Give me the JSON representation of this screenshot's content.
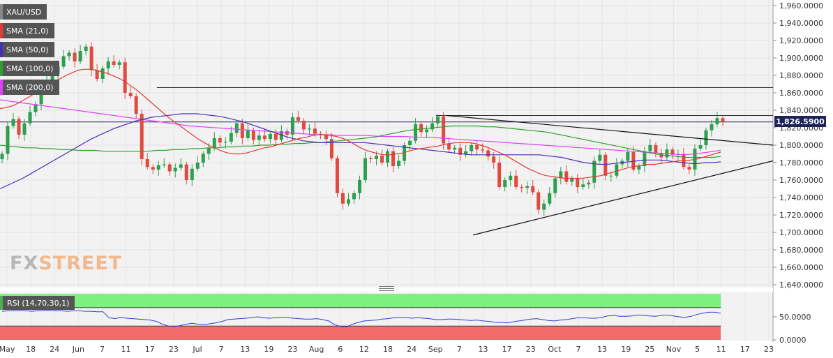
{
  "chart_data": {
    "type": "candlestick",
    "symbol": "XAU/USD",
    "last_price": "1,826.5900",
    "indicators": [
      {
        "label": "XAU/USD",
        "color": "#888888"
      },
      {
        "label": "SMA (21,0)",
        "color": "#e53935"
      },
      {
        "label": "SMA (50,0)",
        "color": "#4a2fb5"
      },
      {
        "label": "SMA (100,0)",
        "color": "#2ca02c"
      },
      {
        "label": "SMA (200,0)",
        "color": "#e040fb"
      }
    ],
    "price_axis": {
      "ylim": [
        1640,
        1960
      ],
      "ticks": [
        "1,960.0000",
        "1,940.0000",
        "1,920.0000",
        "1,900.0000",
        "1,880.0000",
        "1,860.0000",
        "1,840.0000",
        "1,820.0000",
        "1,800.0000",
        "1,780.0000",
        "1,760.0000",
        "1,740.0000",
        "1,720.0000",
        "1,700.0000",
        "1,680.0000",
        "1,660.0000",
        "1,640.0000"
      ],
      "tick_values": [
        1960,
        1940,
        1920,
        1900,
        1880,
        1860,
        1840,
        1820,
        1800,
        1780,
        1760,
        1740,
        1720,
        1700,
        1680,
        1660,
        1640
      ]
    },
    "time_axis": {
      "labels": [
        "May",
        "18",
        "24",
        "Jun",
        "7",
        "11",
        "17",
        "23",
        "Jul",
        "7",
        "13",
        "19",
        "23",
        "Aug",
        "6",
        "12",
        "18",
        "24",
        "Sep",
        "7",
        "13",
        "17",
        "23",
        "Oct",
        "7",
        "13",
        "19",
        "25",
        "Nov",
        "5",
        "11",
        "17",
        "23"
      ]
    },
    "closes": [
      1790,
      1822,
      1830,
      1812,
      1825,
      1838,
      1847,
      1866,
      1874,
      1882,
      1890,
      1902,
      1906,
      1896,
      1908,
      1913,
      1886,
      1876,
      1888,
      1896,
      1892,
      1895,
      1860,
      1856,
      1836,
      1784,
      1775,
      1772,
      1777,
      1778,
      1770,
      1774,
      1778,
      1760,
      1773,
      1780,
      1790,
      1797,
      1808,
      1803,
      1804,
      1814,
      1825,
      1808,
      1817,
      1806,
      1811,
      1807,
      1813,
      1806,
      1816,
      1812,
      1832,
      1828,
      1818,
      1819,
      1813,
      1812,
      1807,
      1785,
      1745,
      1733,
      1738,
      1745,
      1760,
      1785,
      1784,
      1788,
      1780,
      1793,
      1776,
      1782,
      1800,
      1805,
      1824,
      1815,
      1818,
      1825,
      1833,
      1802,
      1795,
      1797,
      1789,
      1793,
      1800,
      1795,
      1794,
      1787,
      1780,
      1752,
      1760,
      1765,
      1752,
      1751,
      1753,
      1746,
      1726,
      1733,
      1745,
      1762,
      1770,
      1758,
      1762,
      1752,
      1755,
      1757,
      1782,
      1789,
      1765,
      1765,
      1778,
      1782,
      1792,
      1772,
      1776,
      1793,
      1800,
      1791,
      1786,
      1795,
      1789,
      1790,
      1775,
      1772,
      1796,
      1800,
      1817,
      1824,
      1831,
      1826.59
    ],
    "sma21": [
      1842,
      1843,
      1845,
      1848,
      1852,
      1856,
      1860,
      1864,
      1868,
      1872,
      1876,
      1880,
      1883,
      1886,
      1887,
      1887,
      1886,
      1884,
      1882,
      1879,
      1876,
      1872,
      1867,
      1862,
      1856,
      1850,
      1844,
      1838,
      1832,
      1827,
      1822,
      1817,
      1812,
      1807,
      1803,
      1799,
      1796,
      1793,
      1791,
      1790,
      1790,
      1791,
      1793,
      1795,
      1797,
      1798,
      1800,
      1802,
      1804,
      1806,
      1808,
      1809,
      1811,
      1812,
      1812,
      1811,
      1810,
      1808,
      1805,
      1801,
      1797,
      1794,
      1792,
      1790,
      1789,
      1789,
      1790,
      1791,
      1793,
      1795,
      1796,
      1797,
      1798,
      1799,
      1801,
      1802,
      1803,
      1803,
      1803,
      1802,
      1800,
      1798,
      1795,
      1792,
      1789,
      1785,
      1781,
      1777,
      1773,
      1770,
      1767,
      1765,
      1764,
      1763,
      1762,
      1762,
      1762,
      1762,
      1763,
      1764,
      1765,
      1767,
      1769,
      1771,
      1773,
      1775,
      1776,
      1777,
      1778,
      1778,
      1779,
      1780,
      1781,
      1782,
      1782,
      1783,
      1784,
      1786,
      1788,
      1790,
      1792
    ],
    "sma50": [
      1750,
      1754,
      1758,
      1762,
      1767,
      1772,
      1777,
      1782,
      1787,
      1792,
      1797,
      1802,
      1807,
      1811,
      1815,
      1819,
      1822,
      1825,
      1828,
      1830,
      1832,
      1833,
      1834,
      1835,
      1836,
      1836,
      1836,
      1835,
      1834,
      1833,
      1831,
      1829,
      1827,
      1824,
      1821,
      1818,
      1815,
      1812,
      1809,
      1807,
      1805,
      1804,
      1803,
      1803,
      1803,
      1803,
      1803,
      1803,
      1803,
      1802,
      1801,
      1800,
      1799,
      1798,
      1797,
      1796,
      1795,
      1794,
      1793,
      1792,
      1791,
      1790,
      1789,
      1789,
      1789,
      1789,
      1789,
      1789,
      1789,
      1789,
      1789,
      1789,
      1788,
      1787,
      1786,
      1784,
      1782,
      1780,
      1779,
      1778,
      1778,
      1779,
      1780,
      1781,
      1782,
      1783,
      1783,
      1783,
      1782,
      1781,
      1780,
      1779,
      1779,
      1780,
      1780,
      1781
    ],
    "sma100": [
      1800,
      1799,
      1798,
      1797,
      1797,
      1796,
      1796,
      1795,
      1795,
      1794,
      1794,
      1794,
      1793,
      1793,
      1793,
      1793,
      1793,
      1793,
      1794,
      1794,
      1795,
      1795,
      1796,
      1796,
      1797,
      1797,
      1798,
      1798,
      1799,
      1799,
      1800,
      1800,
      1801,
      1801,
      1802,
      1802,
      1803,
      1803,
      1804,
      1805,
      1806,
      1807,
      1808,
      1809,
      1811,
      1813,
      1815,
      1817,
      1818,
      1819,
      1820,
      1821,
      1822,
      1822,
      1822,
      1822,
      1821,
      1821,
      1820,
      1819,
      1818,
      1817,
      1816,
      1815,
      1813,
      1811,
      1809,
      1807,
      1805,
      1803,
      1801,
      1799,
      1797,
      1795,
      1793,
      1791,
      1789,
      1788,
      1787,
      1786,
      1786,
      1786,
      1786,
      1787
    ],
    "sma200": [
      1852,
      1850,
      1848,
      1846,
      1844,
      1842,
      1840,
      1838,
      1836,
      1834,
      1832,
      1830,
      1828,
      1826,
      1824,
      1822,
      1821,
      1820,
      1819,
      1818,
      1817,
      1816,
      1815,
      1814,
      1813,
      1812,
      1812,
      1811,
      1811,
      1811,
      1810,
      1810,
      1810,
      1809,
      1809,
      1808,
      1807,
      1806,
      1805,
      1804,
      1803,
      1802,
      1801,
      1800,
      1799,
      1798,
      1797,
      1796,
      1795,
      1794,
      1793,
      1792,
      1791,
      1790,
      1789,
      1790,
      1792,
      1794
    ],
    "resistance_line": 1866,
    "horizontal_line_2": 1834,
    "current_line": 1826.59,
    "rsi": {
      "label": "RSI (14,70,30,1)",
      "ticks": [
        "50.0000",
        "0.0000"
      ],
      "overbought": 70,
      "oversold": 30,
      "values": [
        62,
        63,
        63,
        64,
        63,
        62,
        63,
        64,
        64,
        63,
        63,
        62,
        63,
        63,
        62,
        62,
        61,
        61,
        48,
        46,
        49,
        47,
        46,
        45,
        44,
        43,
        40,
        34,
        30,
        29,
        31,
        34,
        36,
        34,
        33,
        35,
        37,
        40,
        44,
        45,
        46,
        47,
        48,
        50,
        48,
        47,
        48,
        49,
        49,
        47,
        46,
        45,
        45,
        46,
        44,
        41,
        33,
        29,
        28,
        34,
        38,
        41,
        42,
        43,
        45,
        46,
        48,
        49,
        49,
        47,
        48,
        47,
        46,
        44,
        44,
        45,
        45,
        44,
        43,
        42,
        43,
        41,
        40,
        38,
        38,
        37,
        39,
        41,
        43,
        45,
        46,
        44,
        42,
        41,
        43,
        44,
        46,
        48,
        48,
        47,
        47,
        49,
        52,
        53,
        51,
        51,
        52,
        54,
        53,
        52,
        51,
        53,
        54,
        52,
        50,
        49,
        51,
        55,
        58,
        60,
        60,
        58
      ]
    },
    "brand": {
      "fx": "FX",
      "street": "STREET"
    }
  }
}
